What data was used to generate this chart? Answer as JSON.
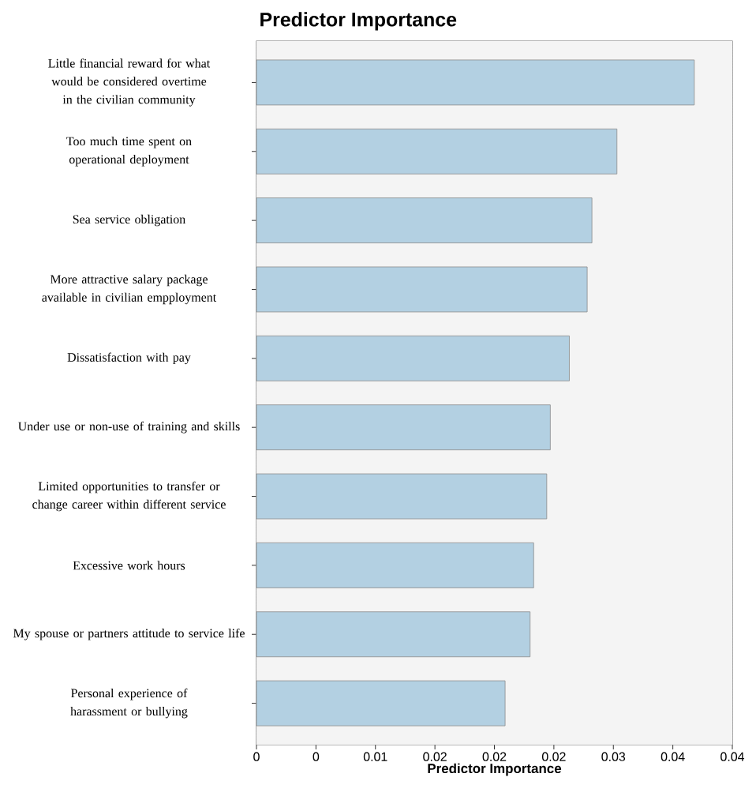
{
  "chart_data": {
    "type": "bar",
    "orientation": "horizontal",
    "title": "Predictor Importance",
    "xlabel": "Predictor Importance",
    "categories": [
      "Little financial reward for what would be considered overtime in the civilian community",
      "Too much time spent on operational deployment",
      "Sea service obligation",
      "More attractive salary package available in civilian empployment",
      "Dissatisfaction with pay",
      "Under use or non-use of training and skills",
      "Limited opportunities to transfer or change career within different service",
      "Excessive work hours",
      "My spouse or partners attitude to service life",
      "Personal experience of harassment or bullying"
    ],
    "values": [
      0.0368,
      0.0303,
      0.0282,
      0.0278,
      0.0263,
      0.0247,
      0.0244,
      0.0233,
      0.023,
      0.0209
    ],
    "color": "#b3d0e2",
    "xlim": [
      0,
      0.04
    ],
    "xticks": [
      0,
      {
        "value": 0.005,
        "label": "0"
      },
      0.01,
      {
        "value": 0.015,
        "label": "0.02"
      },
      0.02,
      {
        "value": 0.025,
        "label": "0.02"
      },
      0.03,
      {
        "value": 0.035,
        "label": "0.04"
      },
      0.04
    ],
    "grid": "x"
  }
}
